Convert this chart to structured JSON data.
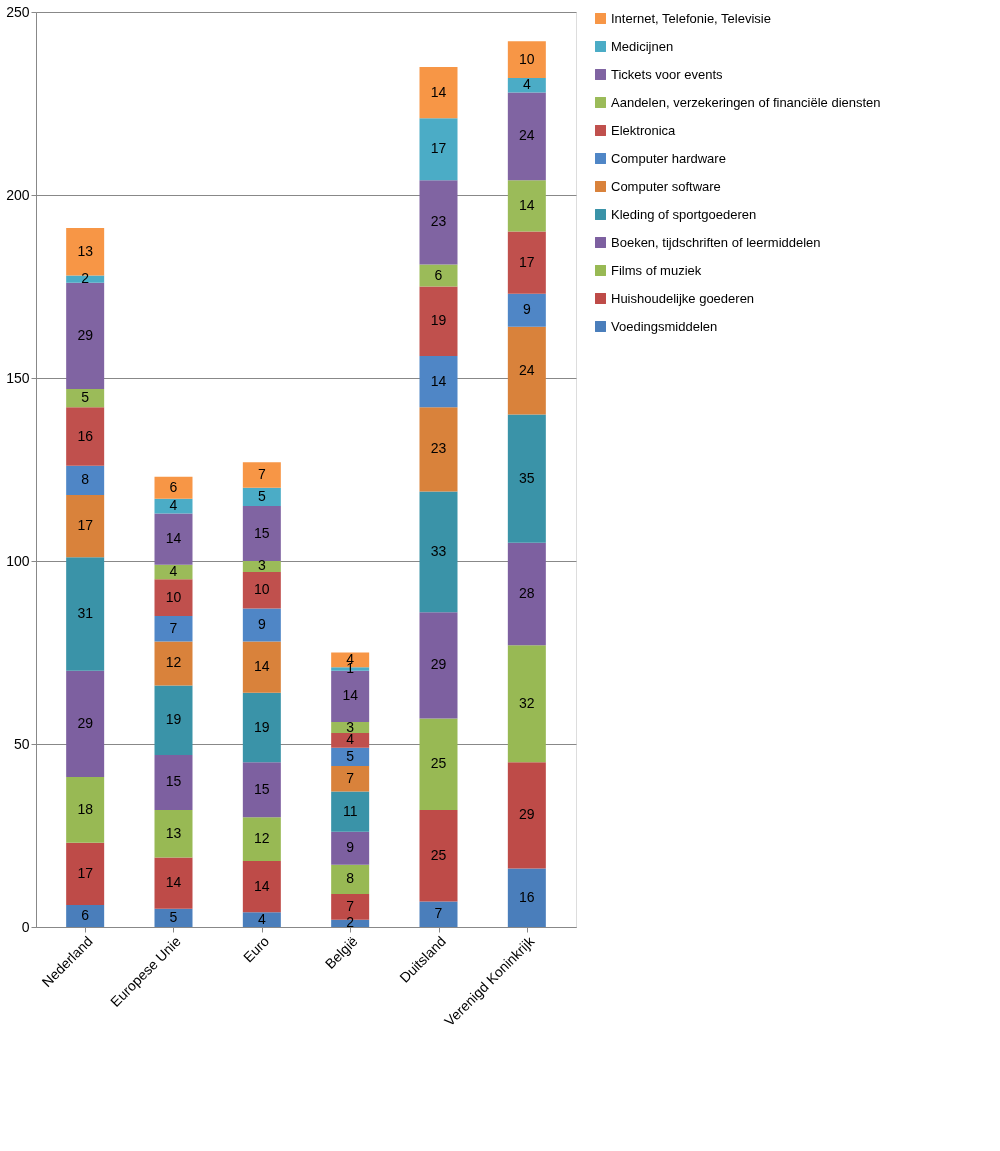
{
  "chart_data": {
    "type": "bar",
    "stacked": true,
    "data_labels": true,
    "grid": "y",
    "legend": "right",
    "categories": [
      "Nederland",
      "Europese Unie",
      "Euro",
      "België",
      "Duitsland",
      "Verenigd Koninkrijk"
    ],
    "ylim": [
      0,
      250
    ],
    "yticks": [
      0,
      50,
      100,
      150,
      200,
      250
    ],
    "series": [
      {
        "name": "Voedingsmiddelen",
        "color": "#4a7ebb",
        "values": [
          6,
          5,
          4,
          2,
          7,
          16
        ]
      },
      {
        "name": "Huishoudelijke goederen",
        "color": "#be4b48",
        "values": [
          17,
          14,
          14,
          7,
          25,
          29
        ]
      },
      {
        "name": "Films of muziek",
        "color": "#98b954",
        "values": [
          18,
          13,
          12,
          8,
          25,
          32
        ]
      },
      {
        "name": "Boeken, tijdschriften of leermiddelen",
        "color": "#7d60a0",
        "values": [
          29,
          15,
          15,
          9,
          29,
          28
        ]
      },
      {
        "name": "Kleding of sportgoederen",
        "color": "#3a93a8",
        "values": [
          31,
          19,
          19,
          11,
          33,
          35
        ]
      },
      {
        "name": "Computer software",
        "color": "#d9823b",
        "values": [
          17,
          12,
          14,
          7,
          23,
          24
        ]
      },
      {
        "name": "Computer hardware",
        "color": "#4f86c6",
        "values": [
          8,
          7,
          9,
          5,
          14,
          9
        ]
      },
      {
        "name": "Elektronica",
        "color": "#c0504d",
        "values": [
          16,
          10,
          10,
          4,
          19,
          17
        ]
      },
      {
        "name": "Aandelen, verzekeringen of financiële diensten",
        "color": "#9bbb59",
        "values": [
          5,
          4,
          3,
          3,
          6,
          14
        ]
      },
      {
        "name": "Tickets voor events",
        "color": "#8064a2",
        "values": [
          29,
          14,
          15,
          14,
          23,
          24
        ]
      },
      {
        "name": "Medicijnen",
        "color": "#4bacc6",
        "values": [
          2,
          4,
          5,
          1,
          17,
          4
        ]
      },
      {
        "name": "Internet, Telefonie, Televisie",
        "color": "#f79646",
        "values": [
          13,
          6,
          7,
          4,
          14,
          10
        ]
      }
    ]
  }
}
